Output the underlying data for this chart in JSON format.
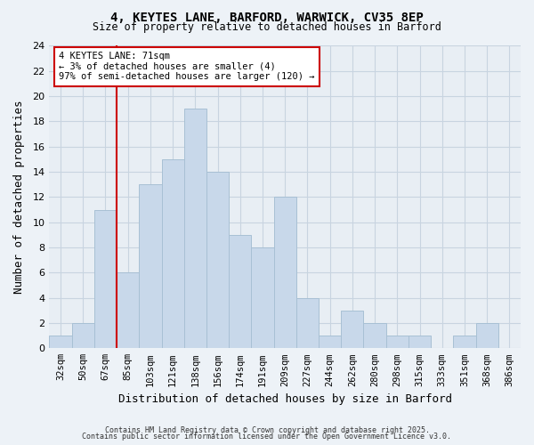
{
  "title": "4, KEYTES LANE, BARFORD, WARWICK, CV35 8EP",
  "subtitle": "Size of property relative to detached houses in Barford",
  "xlabel": "Distribution of detached houses by size in Barford",
  "ylabel": "Number of detached properties",
  "bar_color": "#c8d8ea",
  "bar_edgecolor": "#a8c0d4",
  "bin_labels": [
    "32sqm",
    "50sqm",
    "67sqm",
    "85sqm",
    "103sqm",
    "121sqm",
    "138sqm",
    "156sqm",
    "174sqm",
    "191sqm",
    "209sqm",
    "227sqm",
    "244sqm",
    "262sqm",
    "280sqm",
    "298sqm",
    "315sqm",
    "333sqm",
    "351sqm",
    "368sqm",
    "386sqm"
  ],
  "counts": [
    1,
    2,
    11,
    6,
    13,
    15,
    19,
    14,
    9,
    8,
    12,
    4,
    1,
    3,
    2,
    1,
    1,
    0,
    1,
    2,
    0
  ],
  "vline_x_index": 2,
  "vline_color": "#cc0000",
  "annotation_title": "4 KEYTES LANE: 71sqm",
  "annotation_line1": "← 3% of detached houses are smaller (4)",
  "annotation_line2": "97% of semi-detached houses are larger (120) →",
  "ylim": [
    0,
    24
  ],
  "yticks": [
    0,
    2,
    4,
    6,
    8,
    10,
    12,
    14,
    16,
    18,
    20,
    22,
    24
  ],
  "footer1": "Contains HM Land Registry data © Crown copyright and database right 2025.",
  "footer2": "Contains public sector information licensed under the Open Government Licence v3.0.",
  "background_color": "#edf2f7",
  "plot_background_color": "#e8eef4",
  "grid_color": "#c8d4e0"
}
